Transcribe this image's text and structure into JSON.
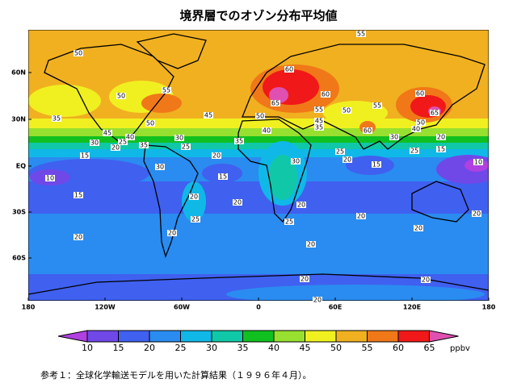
{
  "title": "境界層でのオゾン分布平均値",
  "map": {
    "x_ticks": [
      "180",
      "120W",
      "60W",
      "0",
      "60E",
      "120E",
      "180"
    ],
    "y_ticks": [
      "60N",
      "30N",
      "EQ",
      "30S",
      "60S"
    ],
    "contour_labels": [
      55,
      50,
      60,
      55,
      50,
      65,
      60,
      60,
      55,
      50,
      55,
      65,
      35,
      50,
      45,
      50,
      45,
      35,
      40,
      60,
      50,
      40,
      45,
      40,
      30,
      25,
      20,
      35,
      30,
      25,
      35,
      30,
      20,
      25,
      15,
      20,
      15,
      25,
      20,
      30,
      15,
      10,
      10,
      30,
      15,
      15,
      20,
      20,
      20,
      25,
      25,
      20,
      20,
      20,
      20,
      20,
      20,
      20,
      20,
      20
    ]
  },
  "colorbar": {
    "levels": [
      10,
      15,
      20,
      25,
      30,
      35,
      40,
      45,
      50,
      55,
      60,
      65
    ],
    "unit": "ppbv",
    "colors": [
      "#b040e0",
      "#7048e8",
      "#4060f0",
      "#2a8cf0",
      "#10b8e8",
      "#10c8a8",
      "#10c020",
      "#98e030",
      "#f0f020",
      "#f0b020",
      "#f07818",
      "#f01818",
      "#e050b0"
    ]
  },
  "caption": "参考１：全球化学輸送モデルを用いた計算結果（１９９６年４月）。"
}
